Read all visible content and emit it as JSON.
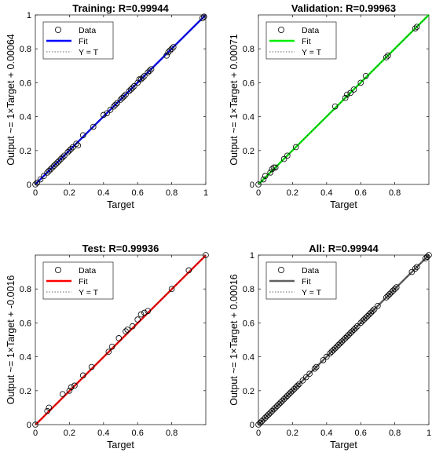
{
  "chart_data": [
    {
      "type": "scatter",
      "title": "Training: R=0.99944",
      "xlabel": "Target",
      "ylabel": "Output ~= 1×Target + 0.00064",
      "xlim": [
        0,
        1
      ],
      "ylim": [
        0,
        1
      ],
      "xticks": [
        "0",
        "0.2",
        "0.4",
        "0.6",
        "0.8",
        "1"
      ],
      "yticks": [
        "0",
        "0.2",
        "0.4",
        "0.6",
        "0.8",
        "1"
      ],
      "fit_color": "#0000ff",
      "fit": {
        "slope": 1,
        "intercept": 0.00064
      },
      "legend": [
        "Data",
        "Fit",
        "Y = T"
      ],
      "legend_position": "top-left",
      "grid": false,
      "series": [
        {
          "x": [
            0.0,
            0.01,
            0.03,
            0.05,
            0.07,
            0.08,
            0.09,
            0.1,
            0.11,
            0.12,
            0.13,
            0.14,
            0.15,
            0.16,
            0.17,
            0.19,
            0.2,
            0.21,
            0.22,
            0.24,
            0.25,
            0.28,
            0.34,
            0.4,
            0.42,
            0.44,
            0.46,
            0.47,
            0.48,
            0.5,
            0.51,
            0.52,
            0.53,
            0.55,
            0.56,
            0.57,
            0.58,
            0.6,
            0.61,
            0.62,
            0.63,
            0.64,
            0.66,
            0.67,
            0.68,
            0.77,
            0.78,
            0.79,
            0.8,
            0.81,
            0.98,
            0.99
          ],
          "y": [
            0.0,
            0.01,
            0.03,
            0.05,
            0.07,
            0.08,
            0.09,
            0.1,
            0.11,
            0.12,
            0.13,
            0.14,
            0.15,
            0.16,
            0.17,
            0.19,
            0.2,
            0.21,
            0.22,
            0.24,
            0.23,
            0.29,
            0.34,
            0.41,
            0.42,
            0.44,
            0.46,
            0.47,
            0.48,
            0.5,
            0.51,
            0.52,
            0.53,
            0.55,
            0.56,
            0.57,
            0.58,
            0.6,
            0.62,
            0.62,
            0.63,
            0.64,
            0.66,
            0.67,
            0.68,
            0.76,
            0.78,
            0.79,
            0.8,
            0.81,
            0.98,
            0.99
          ]
        }
      ]
    },
    {
      "type": "scatter",
      "title": "Validation: R=0.99963",
      "xlabel": "Target",
      "ylabel": "Output ~= 1×Target + 0.00071",
      "xlim": [
        0,
        1
      ],
      "ylim": [
        0,
        1
      ],
      "xticks": [
        "0",
        "0.2",
        "0.4",
        "0.6",
        "0.8"
      ],
      "yticks": [
        "0",
        "0.2",
        "0.4",
        "0.6",
        "0.8"
      ],
      "fit_color": "#00ee00",
      "fit": {
        "slope": 1,
        "intercept": 0.00071
      },
      "legend": [
        "Data",
        "Fit",
        "Y = T"
      ],
      "legend_position": "top-left",
      "grid": false,
      "series": [
        {
          "x": [
            0.0,
            0.03,
            0.04,
            0.07,
            0.08,
            0.09,
            0.1,
            0.15,
            0.17,
            0.22,
            0.45,
            0.51,
            0.52,
            0.54,
            0.56,
            0.6,
            0.63,
            0.75,
            0.76,
            0.92,
            0.93
          ],
          "y": [
            0.0,
            0.03,
            0.05,
            0.07,
            0.09,
            0.1,
            0.1,
            0.15,
            0.17,
            0.22,
            0.46,
            0.51,
            0.53,
            0.54,
            0.56,
            0.6,
            0.64,
            0.75,
            0.76,
            0.92,
            0.93
          ]
        }
      ]
    },
    {
      "type": "scatter",
      "title": "Test: R=0.99936",
      "xlabel": "Target",
      "ylabel": "Output ~= 1×Target + -0.0016",
      "xlim": [
        0,
        1
      ],
      "ylim": [
        0,
        1
      ],
      "xticks": [
        "0",
        "0.2",
        "0.4",
        "0.6",
        "0.8"
      ],
      "yticks": [
        "0",
        "0.2",
        "0.4",
        "0.6",
        "0.8"
      ],
      "fit_color": "#ff0000",
      "fit": {
        "slope": 1,
        "intercept": -0.0016
      },
      "legend": [
        "Data",
        "Fit",
        "Y = T"
      ],
      "legend_position": "top-left",
      "grid": false,
      "series": [
        {
          "x": [
            0.0,
            0.07,
            0.08,
            0.16,
            0.2,
            0.21,
            0.23,
            0.28,
            0.33,
            0.43,
            0.45,
            0.49,
            0.53,
            0.54,
            0.57,
            0.6,
            0.62,
            0.64,
            0.66,
            0.8,
            0.9,
            1.0
          ],
          "y": [
            0.0,
            0.08,
            0.1,
            0.18,
            0.2,
            0.22,
            0.23,
            0.29,
            0.34,
            0.43,
            0.46,
            0.51,
            0.55,
            0.56,
            0.58,
            0.62,
            0.65,
            0.66,
            0.67,
            0.8,
            0.91,
            1.0
          ]
        }
      ]
    },
    {
      "type": "scatter",
      "title": "All: R=0.99944",
      "xlabel": "Target",
      "ylabel": "Output ~= 1×Target + 0.00016",
      "xlim": [
        0,
        1
      ],
      "ylim": [
        0,
        1
      ],
      "xticks": [
        "0",
        "0.2",
        "0.4",
        "0.6",
        "0.8",
        "1"
      ],
      "yticks": [
        "0",
        "0.2",
        "0.4",
        "0.6",
        "0.8",
        "1"
      ],
      "fit_color": "#606060",
      "fit": {
        "slope": 1,
        "intercept": 0.00016
      },
      "legend": [
        "Data",
        "Fit",
        "Y = T"
      ],
      "legend_position": "top-left",
      "grid": false,
      "series": [
        {
          "x": [
            0.0,
            0.01,
            0.02,
            0.03,
            0.04,
            0.05,
            0.06,
            0.07,
            0.08,
            0.09,
            0.1,
            0.11,
            0.12,
            0.13,
            0.14,
            0.15,
            0.16,
            0.17,
            0.18,
            0.19,
            0.2,
            0.21,
            0.22,
            0.23,
            0.24,
            0.26,
            0.28,
            0.3,
            0.33,
            0.34,
            0.38,
            0.4,
            0.42,
            0.43,
            0.44,
            0.45,
            0.46,
            0.47,
            0.48,
            0.49,
            0.5,
            0.51,
            0.52,
            0.53,
            0.54,
            0.55,
            0.56,
            0.57,
            0.58,
            0.6,
            0.61,
            0.62,
            0.63,
            0.64,
            0.65,
            0.66,
            0.67,
            0.68,
            0.7,
            0.75,
            0.76,
            0.77,
            0.78,
            0.79,
            0.8,
            0.81,
            0.9,
            0.92,
            0.93,
            0.98,
            0.99,
            1.0
          ],
          "y": [
            0.0,
            0.01,
            0.02,
            0.03,
            0.04,
            0.05,
            0.06,
            0.07,
            0.08,
            0.09,
            0.1,
            0.11,
            0.12,
            0.13,
            0.14,
            0.15,
            0.16,
            0.17,
            0.18,
            0.19,
            0.2,
            0.21,
            0.22,
            0.23,
            0.24,
            0.26,
            0.28,
            0.3,
            0.33,
            0.34,
            0.38,
            0.4,
            0.42,
            0.43,
            0.44,
            0.45,
            0.46,
            0.47,
            0.48,
            0.49,
            0.5,
            0.51,
            0.52,
            0.53,
            0.54,
            0.55,
            0.56,
            0.57,
            0.58,
            0.6,
            0.61,
            0.62,
            0.63,
            0.64,
            0.65,
            0.66,
            0.67,
            0.68,
            0.7,
            0.75,
            0.76,
            0.77,
            0.78,
            0.79,
            0.8,
            0.81,
            0.9,
            0.92,
            0.93,
            0.98,
            0.99,
            1.0
          ]
        }
      ]
    }
  ]
}
